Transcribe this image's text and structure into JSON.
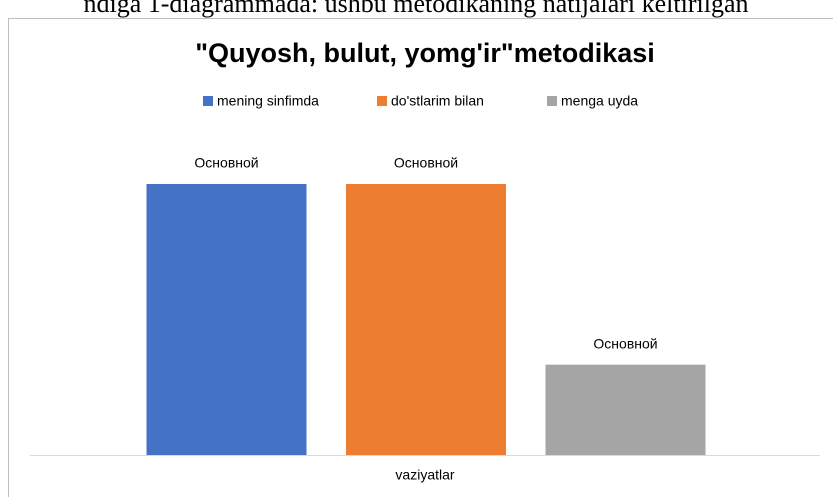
{
  "caption": "ndiga 1-diagrammada: ushbu metodikaning natijalari keltirilgan",
  "chart_data": {
    "type": "bar",
    "title": "\"Quyosh, bulut, yomg'ir\"metodikasi",
    "categories": [
      "vaziyatlar"
    ],
    "series": [
      {
        "name": "mening sinfimda",
        "color": "#4472c4",
        "values": [
          3
        ],
        "data_labels": [
          "Основной"
        ]
      },
      {
        "name": "do'stlarim bilan",
        "color": "#ed7d31",
        "values": [
          3
        ],
        "data_labels": [
          "Основной"
        ]
      },
      {
        "name": "menga uyda",
        "color": "#a5a5a5",
        "values": [
          1
        ],
        "data_labels": [
          "Основной"
        ]
      }
    ],
    "ylim": [
      0,
      3
    ],
    "legend": "top"
  }
}
